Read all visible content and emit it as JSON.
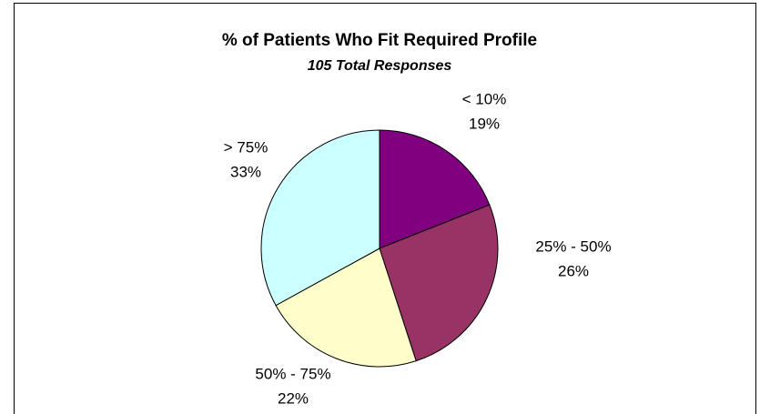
{
  "chart_data": {
    "type": "pie",
    "title": "% of Patients Who Fit Required Profile",
    "subtitle": "105 Total Responses",
    "categories": [
      "< 10%",
      "25% - 50%",
      "50% - 75%",
      "> 75%"
    ],
    "values": [
      19,
      26,
      22,
      33
    ],
    "value_labels": [
      "19%",
      "26%",
      "22%",
      "33%"
    ],
    "colors": [
      "#800080",
      "#993366",
      "#FFFFCC",
      "#CCFFFF"
    ]
  }
}
